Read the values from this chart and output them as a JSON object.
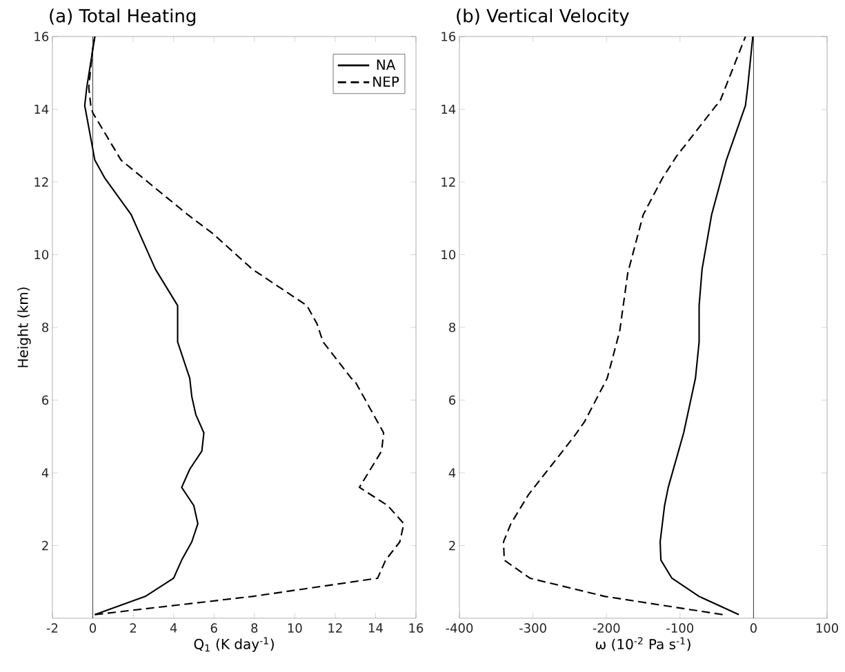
{
  "chart_data": [
    {
      "type": "line",
      "title": "(a) Total Heating",
      "xlabel": "Q$_{1}$ (K day$^{-1}$)",
      "ylabel": "Height (km)",
      "xlim": [
        -2,
        16
      ],
      "ylim": [
        0,
        16
      ],
      "xticks": [
        -2,
        0,
        2,
        4,
        6,
        8,
        10,
        12,
        14,
        16
      ],
      "yticks": [
        2,
        4,
        6,
        8,
        10,
        12,
        14,
        16
      ],
      "legend": "top right",
      "marker": "none",
      "ref_lines": [
        {
          "axis": "x",
          "value": 0,
          "color": "#000000"
        }
      ],
      "series": [
        {
          "name": "NA",
          "color": "#000000",
          "line_style": "solid",
          "x": [
            0.1,
            2.6,
            4.0,
            4.4,
            4.9,
            5.2,
            5.0,
            4.4,
            4.8,
            5.4,
            5.5,
            5.1,
            4.9,
            4.8,
            4.2,
            4.2,
            3.1,
            2.3,
            1.9,
            0.6,
            0.1,
            -0.4,
            -0.3,
            0.1
          ],
          "values": [
            0.1,
            0.6,
            1.1,
            1.6,
            2.1,
            2.6,
            3.1,
            3.6,
            4.1,
            4.6,
            5.1,
            5.6,
            6.1,
            6.6,
            7.6,
            8.6,
            9.6,
            10.6,
            11.1,
            12.1,
            12.6,
            14.1,
            14.6,
            16
          ]
        },
        {
          "name": "NEP",
          "color": "#000000",
          "line_style": "dashed",
          "x": [
            0.1,
            7.9,
            14.1,
            14.5,
            15.2,
            15.4,
            14.6,
            13.2,
            14.3,
            14.4,
            13.0,
            12.8,
            11.4,
            11.1,
            10.6,
            7.9,
            5.9,
            4.7,
            2.5,
            1.4,
            0.0,
            -0.1,
            -0.2,
            0.0,
            0.1
          ],
          "values": [
            0.1,
            0.6,
            1.1,
            1.6,
            2.1,
            2.6,
            3.1,
            3.6,
            4.6,
            5.1,
            6.5,
            6.6,
            7.6,
            8.1,
            8.6,
            9.6,
            10.6,
            11.1,
            12.1,
            12.6,
            13.9,
            14.1,
            14.6,
            15.7,
            16
          ]
        }
      ]
    },
    {
      "type": "line",
      "title": "(b) Vertical Velocity",
      "xlabel": "ω (10$^{-2}$ Pa s$^{-1}$)",
      "xlim": [
        -400,
        100
      ],
      "ylim": [
        0,
        16
      ],
      "xticks": [
        -400,
        -300,
        -200,
        -100,
        0,
        100
      ],
      "yticks": [
        2,
        4,
        6,
        8,
        10,
        12,
        14,
        16
      ],
      "legend": false,
      "marker": "none",
      "ref_lines": [
        {
          "axis": "x",
          "value": 0,
          "color": "#000000"
        }
      ],
      "series": [
        {
          "color": "#000000",
          "line_style": "solid",
          "x": [
            -20,
            -74,
            -111,
            -126,
            -127,
            -121,
            -116,
            -95,
            -79,
            -74,
            -74,
            -70,
            -57,
            -37,
            -11,
            -8,
            -1
          ],
          "values": [
            0.1,
            0.6,
            1.1,
            1.6,
            2.1,
            3.1,
            3.6,
            5.1,
            6.6,
            7.6,
            8.6,
            9.6,
            11.1,
            12.6,
            14.1,
            14.6,
            16
          ]
        },
        {
          "color": "#000000",
          "line_style": "dashed",
          "x": [
            -42,
            -202,
            -304,
            -339,
            -340,
            -330,
            -306,
            -244,
            -230,
            -199,
            -182,
            -171,
            -150,
            -124,
            -105,
            -51,
            -46,
            -11
          ],
          "values": [
            0.1,
            0.6,
            1.1,
            1.6,
            2.1,
            2.6,
            3.4,
            5.0,
            5.4,
            6.6,
            7.9,
            9.5,
            11.1,
            12.1,
            12.7,
            14.1,
            14.2,
            16
          ]
        }
      ]
    }
  ]
}
